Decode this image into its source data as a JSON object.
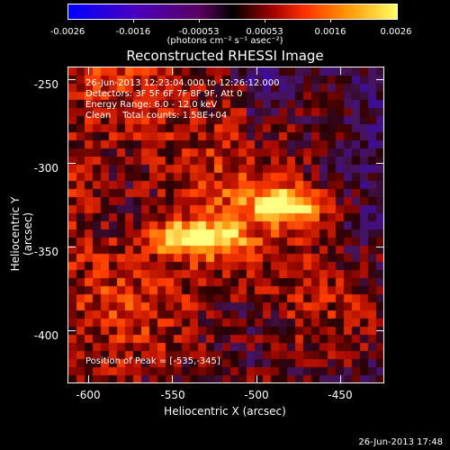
{
  "colorbar": {
    "tick_labels": [
      "-0.0026",
      "-0.0016",
      "-0.00053",
      "0.00053",
      "0.0016",
      "0.0026"
    ],
    "units": "(photons cm⁻² s⁻¹ asec⁻²)"
  },
  "title": "Reconstructed RHESSI Image",
  "info": {
    "time_range": "26-Jun-2013 12:23:04.000 to 12:26:12.000",
    "detectors": "Detectors: 3F 5F 6F 7F 8F 9F, Att 0",
    "energy": "Energy Range: 6.0 - 12.0 keV",
    "clean": "Clean    Total counts: 1.58E+04",
    "peak": "Position of Peak = [-535,-345]"
  },
  "axes": {
    "xlabel": "Heliocentric X (arcsec)",
    "ylabel": "Heliocentric Y (arcsec)",
    "xticks": [
      "-600",
      "-550",
      "-500",
      "-450"
    ],
    "yticks": [
      "-250",
      "-300",
      "-350",
      "-400"
    ],
    "xlim": [
      -612,
      -424
    ],
    "ylim": [
      -431,
      -243
    ]
  },
  "chart_data": {
    "type": "heatmap",
    "title": "Reconstructed RHESSI Image",
    "xlabel": "Heliocentric X (arcsec)",
    "ylabel": "Heliocentric Y (arcsec)",
    "xlim": [
      -612,
      -424
    ],
    "ylim": [
      -431,
      -243
    ],
    "color_range": [
      -0.0026,
      0.0026
    ],
    "peak_position": [
      -535,
      -345
    ],
    "sources": [
      {
        "x": -535,
        "y": -345,
        "value": 0.0026
      },
      {
        "x": -481,
        "y": -326,
        "value": 0.002
      }
    ]
  },
  "footer": {
    "timestamp": "26-Jun-2013 17:48"
  }
}
